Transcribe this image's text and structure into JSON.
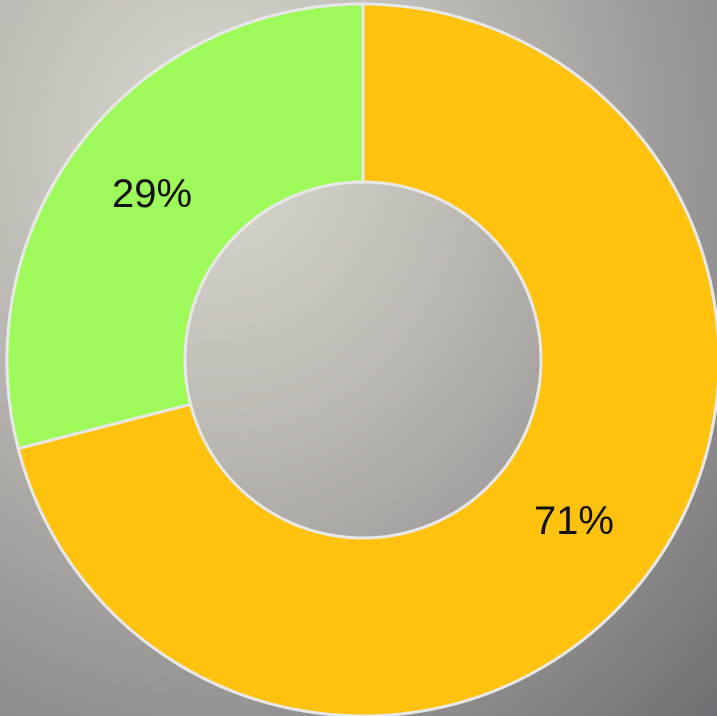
{
  "chart_data": {
    "type": "donut",
    "values": [
      71,
      29
    ],
    "value_labels": [
      "71%",
      "29%"
    ],
    "colors": [
      "#ffc20e",
      "#9ef95a"
    ]
  }
}
